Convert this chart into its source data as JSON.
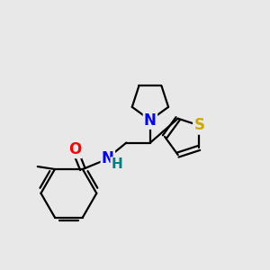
{
  "bg_color": "#e8e8e8",
  "atom_colors": {
    "N": "#0000ff",
    "O": "#ff0000",
    "S": "#ccaa00",
    "NH": "#008080",
    "C": "#000000"
  },
  "bond_color": "#000000",
  "font_size_atoms": 12,
  "font_size_H": 9
}
